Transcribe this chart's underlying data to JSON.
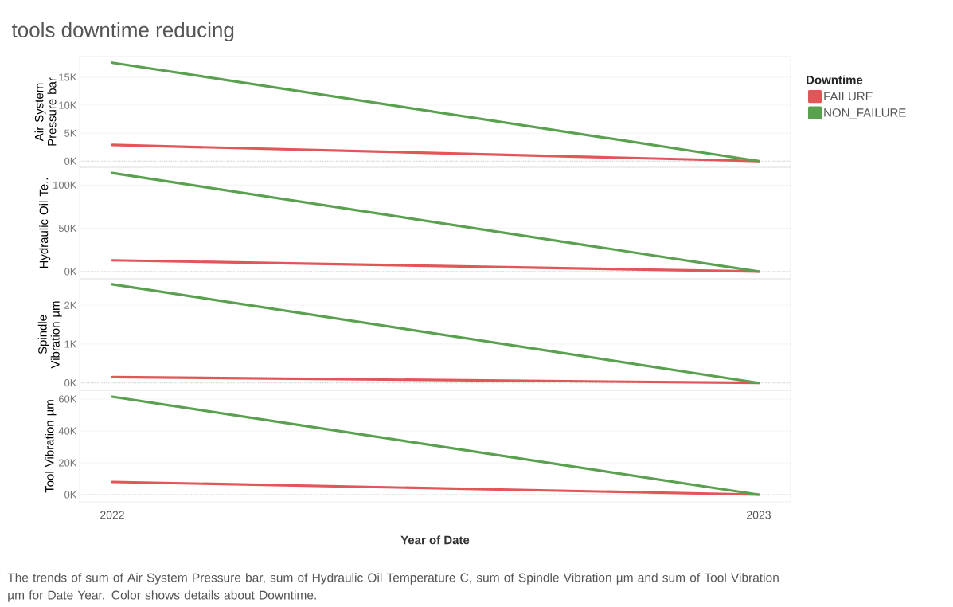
{
  "chart_data": [
    {
      "type": "line",
      "title": "tools downtime reducing",
      "ylabel": "Air System Pressure bar",
      "legend_title": "Downtime",
      "legend": "right",
      "grid": "y",
      "tick_labels": "y",
      "line_style": "solid",
      "x": [
        "2022",
        "2023"
      ],
      "xlim": [
        "2021-12-13",
        "2023-01-19"
      ],
      "xticks": [
        "2022",
        "2023"
      ],
      "ylim": [
        -1100,
        18700
      ],
      "yticks": [
        {
          "value": 0,
          "label": "0K"
        },
        {
          "value": 5000,
          "label": "5K"
        },
        {
          "value": 10000,
          "label": "10K"
        },
        {
          "value": 15000,
          "label": "15K"
        }
      ],
      "ref_lines": [
        {
          "axis": "y",
          "value": 0,
          "color": "#b0b0b0",
          "line_style": "dotted"
        }
      ],
      "series": [
        {
          "name": "FAILURE",
          "color": "#e15759",
          "values": [
            2900,
            0
          ]
        },
        {
          "name": "NON_FAILURE",
          "color": "#59a14f",
          "values": [
            17600,
            0
          ]
        }
      ]
    },
    {
      "type": "line",
      "ylabel": "Hydraulic Oil Te..",
      "grid": "y",
      "tick_labels": "y",
      "line_style": "solid",
      "x": [
        "2022",
        "2023"
      ],
      "xlim": [
        "2021-12-13",
        "2023-01-19"
      ],
      "xticks": [
        "2022",
        "2023"
      ],
      "ylim": [
        -8400,
        120500
      ],
      "yticks": [
        {
          "value": 0,
          "label": "0K"
        },
        {
          "value": 50000,
          "label": "50K"
        },
        {
          "value": 100000,
          "label": "100K"
        }
      ],
      "ref_lines": [
        {
          "axis": "y",
          "value": 0,
          "color": "#b0b0b0",
          "line_style": "dotted"
        }
      ],
      "series": [
        {
          "color": "#e15759",
          "values": [
            13000,
            0
          ]
        },
        {
          "color": "#59a14f",
          "values": [
            114000,
            0
          ]
        }
      ]
    },
    {
      "type": "line",
      "ylabel": "Spindle Vibration µm",
      "grid": "y",
      "tick_labels": "y",
      "line_style": "solid",
      "x": [
        "2022",
        "2023"
      ],
      "xlim": [
        "2021-12-13",
        "2023-01-19"
      ],
      "xticks": [
        "2022",
        "2023"
      ],
      "ylim": [
        -190,
        2680
      ],
      "yticks": [
        {
          "value": 0,
          "label": "0K"
        },
        {
          "value": 1000,
          "label": "1K"
        },
        {
          "value": 2000,
          "label": "2K"
        }
      ],
      "ref_lines": [
        {
          "axis": "y",
          "value": 0,
          "color": "#b0b0b0",
          "line_style": "dotted"
        }
      ],
      "series": [
        {
          "color": "#e15759",
          "values": [
            150,
            0
          ]
        },
        {
          "color": "#59a14f",
          "values": [
            2540,
            0
          ]
        }
      ]
    },
    {
      "type": "line",
      "ylabel": "Tool Vibration µm",
      "xlabel": "Year of Date",
      "grid": "y",
      "line_style": "solid",
      "x": [
        "2022",
        "2023"
      ],
      "xlim": [
        "2021-12-13",
        "2023-01-19"
      ],
      "xticks": [
        "2022",
        "2023"
      ],
      "ylim": [
        -4500,
        65500
      ],
      "yticks": [
        {
          "value": 0,
          "label": "0K"
        },
        {
          "value": 20000,
          "label": "20K"
        },
        {
          "value": 40000,
          "label": "40K"
        },
        {
          "value": 60000,
          "label": "60K"
        }
      ],
      "ref_lines": [
        {
          "axis": "y",
          "value": 0,
          "color": "#b0b0b0",
          "line_style": "dotted"
        }
      ],
      "annotations": [
        "The trends of sum of Air System Pressure bar, sum of Hydraulic Oil Temperature C, sum of Spindle Vibration µm and sum of Tool Vibration µm for Date Year.  Color shows details about Downtime."
      ],
      "series": [
        {
          "color": "#e15759",
          "values": [
            8000,
            0
          ]
        },
        {
          "color": "#59a14f",
          "values": [
            61500,
            0
          ]
        }
      ]
    }
  ]
}
